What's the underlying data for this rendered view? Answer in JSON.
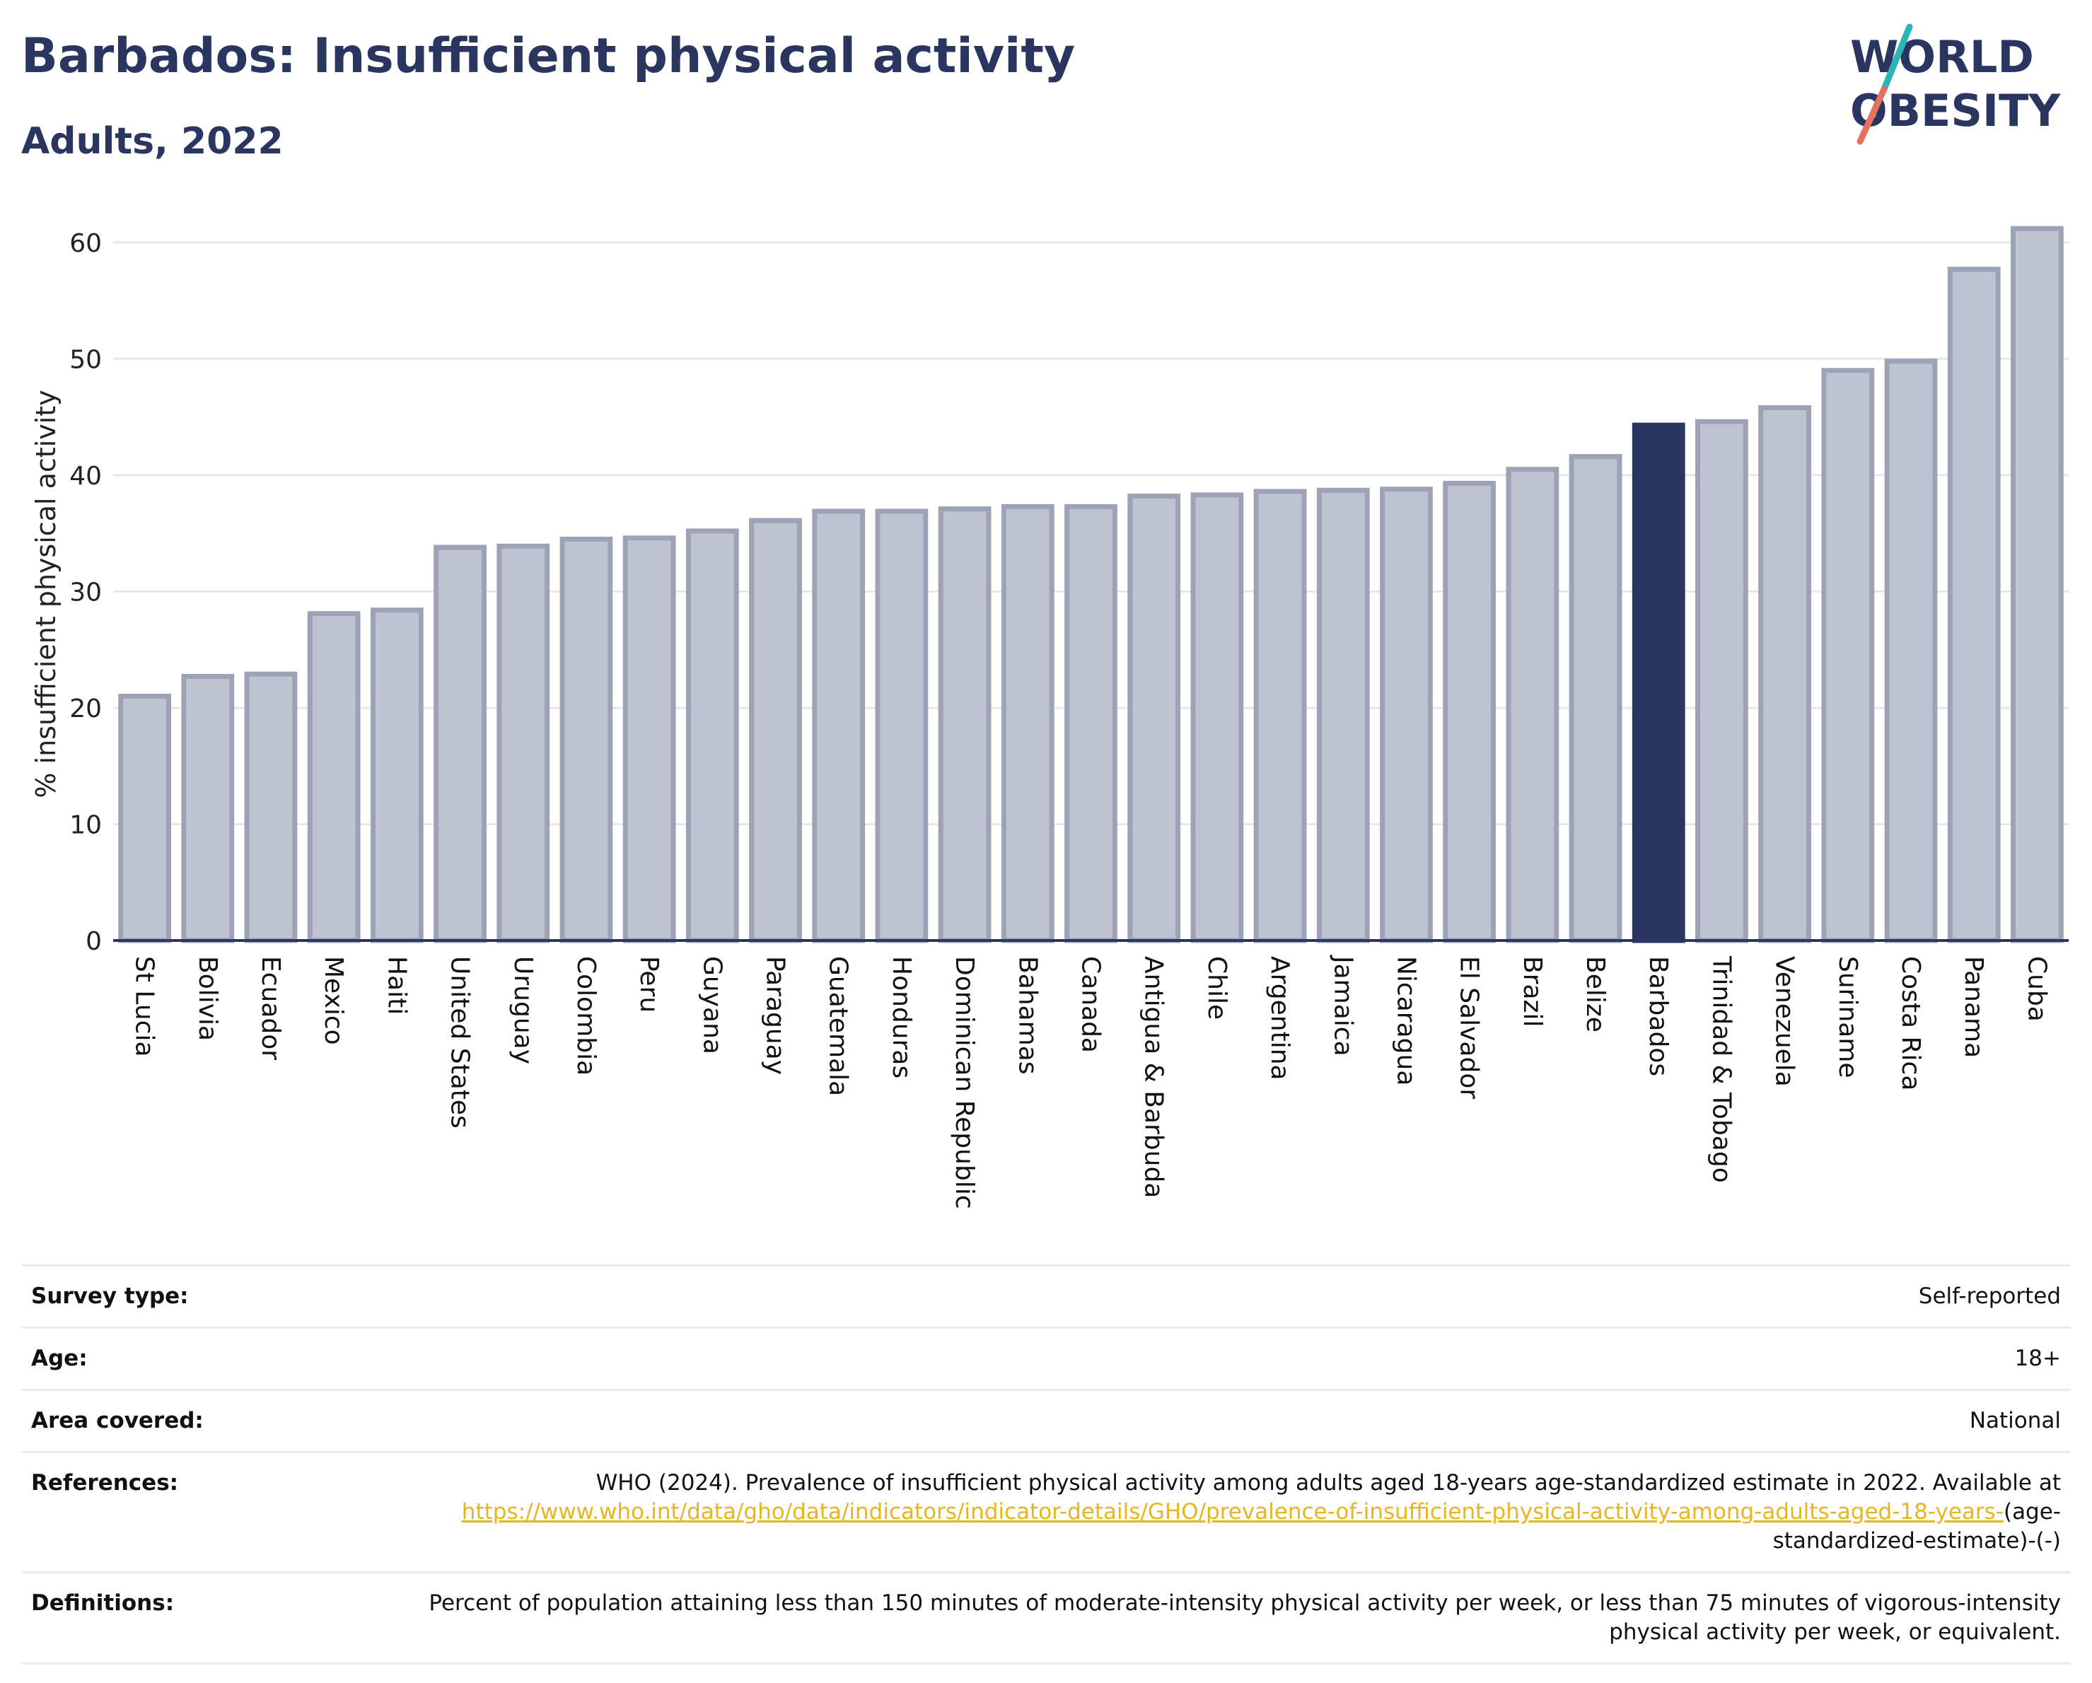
{
  "title": "Barbados: Insufficient physical activity",
  "subtitle": "Adults, 2022",
  "logo": {
    "line1": "WORLD",
    "line2": "OBESITY"
  },
  "colors": {
    "bar": "#bfc2d0",
    "bar_border": "#9da2b7",
    "highlight": "#2a3560",
    "accent_teal": "#2bb5b5",
    "accent_red": "#e8705f"
  },
  "chart_data": {
    "type": "bar",
    "title": "Barbados: Insufficient physical activity",
    "subtitle": "Adults, 2022",
    "xlabel": "",
    "ylabel": "% insufficient physical activity",
    "ylim": [
      0,
      62
    ],
    "yticks": [
      0,
      10,
      20,
      30,
      40,
      50,
      60
    ],
    "grid": true,
    "highlight": "Barbados",
    "categories": [
      "St Lucia",
      "Bolivia",
      "Ecuador",
      "Mexico",
      "Haiti",
      "United States",
      "Uruguay",
      "Colombia",
      "Peru",
      "Guyana",
      "Paraguay",
      "Guatemala",
      "Honduras",
      "Dominican Republic",
      "Bahamas",
      "Canada",
      "Antigua & Barbuda",
      "Chile",
      "Argentina",
      "Jamaica",
      "Nicaragua",
      "El Salvador",
      "Brazil",
      "Belize",
      "Barbados",
      "Trinidad & Tobago",
      "Venezuela",
      "Suriname",
      "Costa Rica",
      "Panama",
      "Cuba"
    ],
    "values": [
      21.0,
      22.7,
      22.9,
      28.1,
      28.4,
      33.8,
      33.9,
      34.5,
      34.6,
      35.2,
      36.1,
      36.9,
      36.9,
      37.1,
      37.3,
      37.3,
      38.2,
      38.3,
      38.6,
      38.7,
      38.8,
      39.3,
      40.5,
      41.6,
      44.3,
      44.6,
      45.8,
      49.0,
      49.8,
      57.7,
      61.2
    ]
  },
  "info": [
    {
      "key": "Survey type:",
      "value": "Self-reported"
    },
    {
      "key": "Age:",
      "value": "18+"
    },
    {
      "key": "Area covered:",
      "value": "National"
    },
    {
      "key": "References:",
      "value": "WHO (2024). Prevalence of insufficient physical activity among adults aged 18-years age-standardized estimate in 2022. Available at",
      "link": "https://www.who.int/data/gho/data/indicators/indicator-details/GHO/prevalence-of-insufficient-physical-activity-among-adults-aged-18-years-",
      "suffix": "(age-standardized-estimate)-(-)"
    },
    {
      "key": "Definitions:",
      "value": "Percent of population attaining less than 150 minutes of moderate-intensity physical activity per week, or less than 75 minutes of vigorous-intensity physical activity per week, or equivalent."
    }
  ]
}
